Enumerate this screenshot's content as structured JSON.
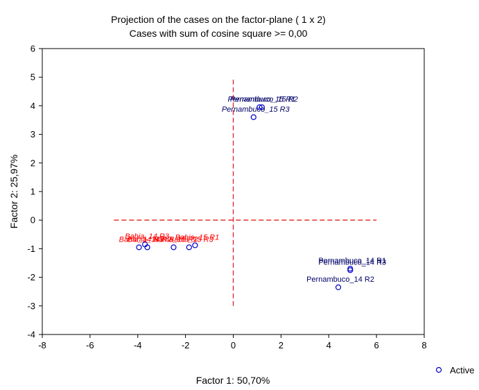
{
  "chart_data": {
    "type": "scatter",
    "title": "Projection of the cases on the factor-plane (  1 x   2)",
    "subtitle": "Cases with sum of cosine square >=  0,00",
    "xlabel": "Factor 1: 50,70%",
    "ylabel": "Factor 2: 25,97%",
    "xlim": [
      -8,
      8
    ],
    "ylim": [
      -4,
      6
    ],
    "xticks": [
      "-8",
      "-6",
      "-4",
      "-2",
      "0",
      "2",
      "4",
      "6",
      "8"
    ],
    "yticks": [
      "6",
      "5",
      "4",
      "3",
      "2",
      "1",
      "0",
      "-1",
      "-2",
      "-3",
      "-4"
    ],
    "grid": false,
    "legend": {
      "position": "bottom-right",
      "entries": [
        "Active"
      ]
    },
    "colors": {
      "marker": "#0000cc",
      "label_dark": "#000066",
      "label_red": "#ff0000",
      "ref_lines": "#e02020"
    },
    "reference_lines": {
      "horizontal": {
        "y": 0,
        "x_from": -5,
        "x_to": 6
      },
      "vertical": {
        "x": 0,
        "y_from": -3,
        "y_to": 5
      }
    },
    "points": [
      {
        "label": "Pernambuco_15 R1",
        "x": 1.1,
        "y": 3.95,
        "color": "label_dark",
        "italic": true
      },
      {
        "label": "Pernambuco_15 R2",
        "x": 1.2,
        "y": 3.95,
        "color": "label_dark",
        "italic": true
      },
      {
        "label": "Pernambuco_15 R3",
        "x": 0.85,
        "y": 3.6,
        "color": "label_dark",
        "italic": true
      },
      {
        "label": "Pernambuco_14 R1",
        "x": 4.9,
        "y": -1.7,
        "color": "label_dark",
        "italic": false
      },
      {
        "label": "Pernambuco_14 R3",
        "x": 4.9,
        "y": -1.75,
        "color": "label_dark",
        "italic": false
      },
      {
        "label": "Pernambuco_14 R2",
        "x": 4.4,
        "y": -2.35,
        "color": "label_dark",
        "italic": false
      },
      {
        "label": "Bahia_14 R3",
        "x": -3.7,
        "y": -0.85,
        "color": "label_red",
        "italic": true
      },
      {
        "label": "Bahia_14 R1",
        "x": -3.95,
        "y": -0.95,
        "color": "label_red",
        "italic": true
      },
      {
        "label": "Bahia_14 R2",
        "x": -3.6,
        "y": -0.95,
        "color": "label_red",
        "italic": true
      },
      {
        "label": "Bahia_15 R1",
        "x": -1.6,
        "y": -0.88,
        "color": "label_red",
        "italic": true
      },
      {
        "label": "Bahia_15 R2",
        "x": -2.5,
        "y": -0.95,
        "color": "label_red",
        "italic": true
      },
      {
        "label": "Bahia_15 R3",
        "x": -1.85,
        "y": -0.95,
        "color": "label_red",
        "italic": true
      }
    ]
  }
}
